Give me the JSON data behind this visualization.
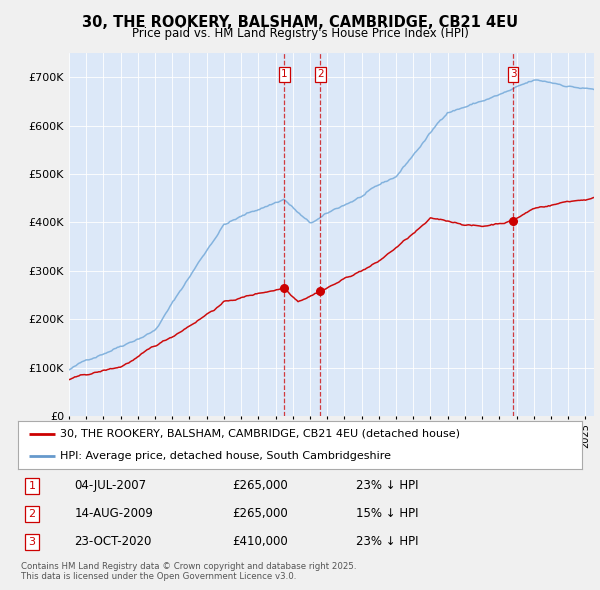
{
  "title_line1": "30, THE ROOKERY, BALSHAM, CAMBRIDGE, CB21 4EU",
  "title_line2": "Price paid vs. HM Land Registry's House Price Index (HPI)",
  "background_color": "#f0f0f0",
  "plot_bg_color": "#dce8f8",
  "ylim": [
    0,
    750000
  ],
  "yticks": [
    0,
    100000,
    200000,
    300000,
    400000,
    500000,
    600000,
    700000
  ],
  "ytick_labels": [
    "£0",
    "£100K",
    "£200K",
    "£300K",
    "£400K",
    "£500K",
    "£600K",
    "£700K"
  ],
  "legend_entries": [
    "30, THE ROOKERY, BALSHAM, CAMBRIDGE, CB21 4EU (detached house)",
    "HPI: Average price, detached house, South Cambridgeshire"
  ],
  "legend_colors": [
    "#cc0000",
    "#6699cc"
  ],
  "transactions": [
    {
      "num": 1,
      "date": "04-JUL-2007",
      "price": "£265,000",
      "pct": "23% ↓ HPI",
      "year": 2007.5
    },
    {
      "num": 2,
      "date": "14-AUG-2009",
      "price": "£265,000",
      "pct": "15% ↓ HPI",
      "year": 2009.6
    },
    {
      "num": 3,
      "date": "23-OCT-2020",
      "price": "£410,000",
      "pct": "23% ↓ HPI",
      "year": 2020.8
    }
  ],
  "footer": "Contains HM Land Registry data © Crown copyright and database right 2025.\nThis data is licensed under the Open Government Licence v3.0.",
  "hpi_color": "#7aaddb",
  "price_color": "#cc0000",
  "marker_color": "#cc0000",
  "vline_color": "#cc0000",
  "xmin": 1995,
  "xmax": 2025.5
}
